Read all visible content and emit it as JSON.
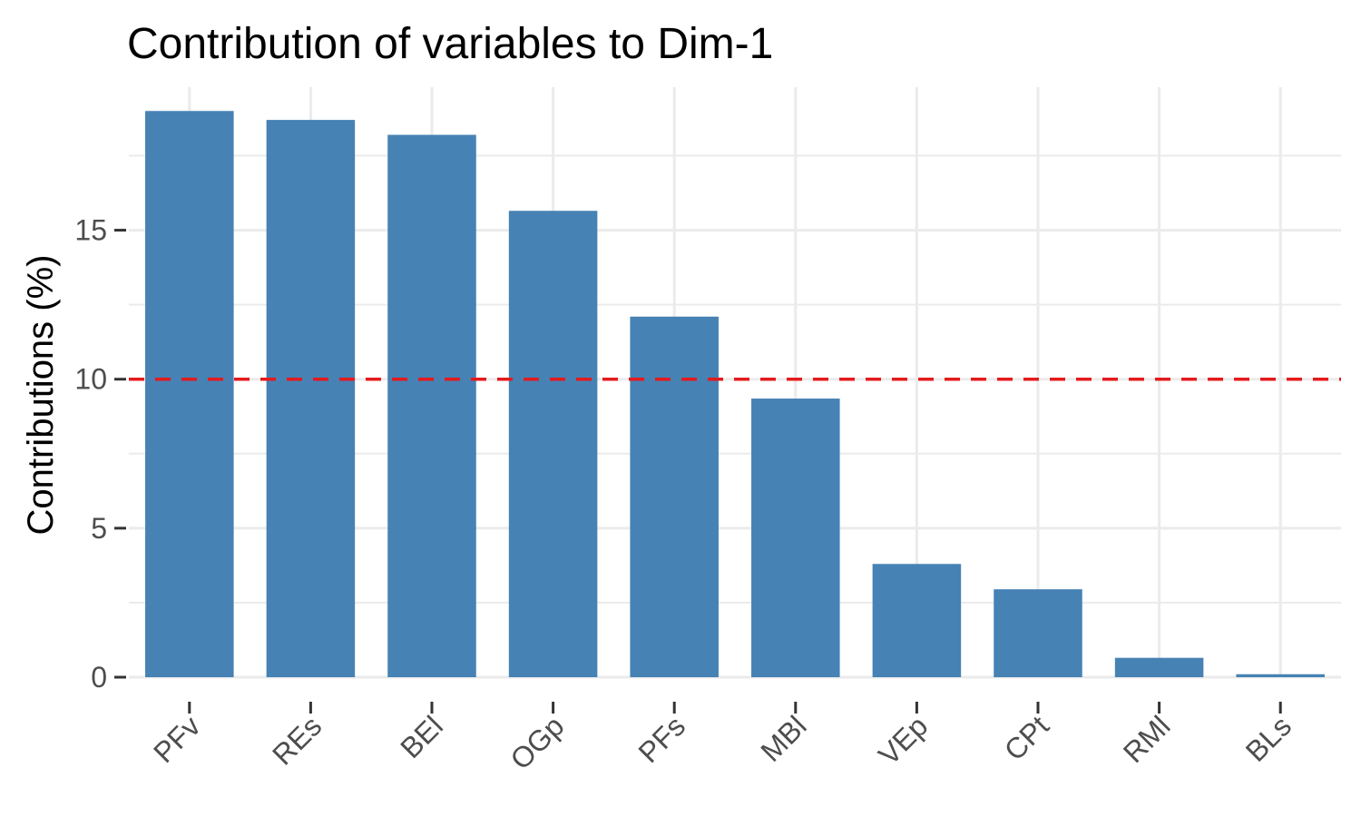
{
  "chart_data": {
    "type": "bar",
    "title": "Contribution of variables to Dim-1",
    "xlabel": "",
    "ylabel": "Contributions (%)",
    "categories": [
      "PFv",
      "REs",
      "BEl",
      "OGp",
      "PFs",
      "MBl",
      "VEp",
      "CPt",
      "RMl",
      "BLs"
    ],
    "values": [
      19.0,
      18.7,
      18.2,
      15.65,
      12.1,
      9.35,
      3.8,
      2.95,
      0.65,
      0.1
    ],
    "ylim": [
      0,
      19.8
    ],
    "yticks": [
      0,
      5,
      10,
      15
    ],
    "ytick_labels": [
      "0",
      "5",
      "10",
      "15"
    ],
    "reference_line": {
      "value": 10,
      "style": "dashed",
      "color": "#e41a1c"
    },
    "grid": true,
    "legend": "none",
    "colors": {
      "bar": "#4682b4",
      "grid": "#ebebeb",
      "axis_text": "#4d4d4d"
    }
  }
}
